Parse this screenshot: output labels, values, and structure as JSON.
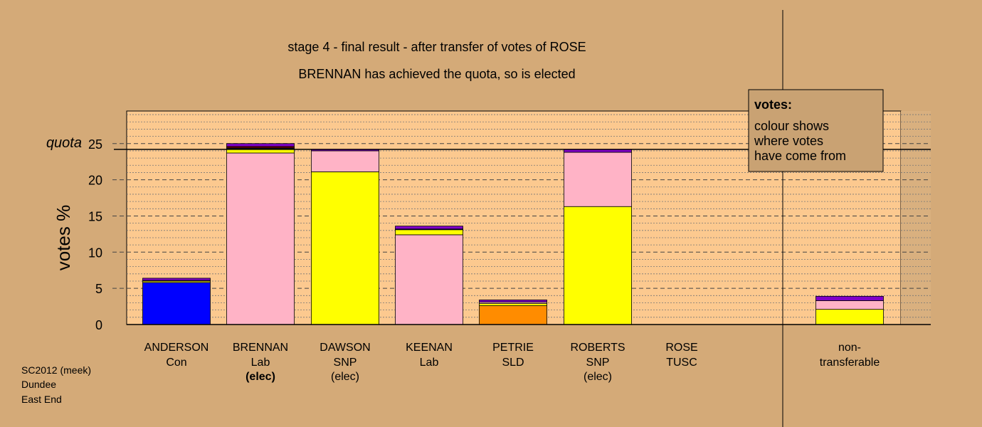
{
  "colors": {
    "background": "#d4aa78",
    "plot_area": "#fcc98f",
    "Con": "#0000ff",
    "Lab": "#ffb3c6",
    "SNP": "#ffff00",
    "SLD": "#ff8c00",
    "TUSC": "#8b0000",
    "other": "#8000c8"
  },
  "chart_data": {
    "type": "bar",
    "stacked": true,
    "title": "stage 4 - final result - after transfer of votes of ROSE",
    "subtitle": "BRENNAN has achieved the quota, so is elected",
    "ylabel": "votes %",
    "xlabel": "",
    "ylim": [
      0,
      29.5
    ],
    "yticks": [
      0,
      5,
      10,
      15,
      20,
      25
    ],
    "quota": 24.2,
    "quota_label": "quota",
    "grid": true,
    "legend": {
      "title": "votes:",
      "lines": [
        "colour shows",
        "where votes",
        "have come from"
      ],
      "position": "top-right"
    },
    "categories": [
      {
        "name": "ANDERSON",
        "party": "Con",
        "status": ""
      },
      {
        "name": "BRENNAN",
        "party": "Lab",
        "status": "(elec)",
        "status_bold": true
      },
      {
        "name": "DAWSON",
        "party": "SNP",
        "status": "(elec)"
      },
      {
        "name": "KEENAN",
        "party": "Lab",
        "status": ""
      },
      {
        "name": "PETRIE",
        "party": "SLD",
        "status": ""
      },
      {
        "name": "ROBERTS",
        "party": "SNP",
        "status": "(elec)"
      },
      {
        "name": "ROSE",
        "party": "TUSC",
        "status": ""
      },
      {
        "name": "non-",
        "party": "transferable",
        "status": ""
      }
    ],
    "bars": [
      [
        {
          "source": "Con",
          "value": 5.8
        },
        {
          "source": "SNP",
          "value": 0.2
        },
        {
          "source": "Lab",
          "value": 0.1
        },
        {
          "source": "other",
          "value": 0.3
        }
      ],
      [
        {
          "source": "Lab",
          "value": 23.7
        },
        {
          "source": "SNP",
          "value": 0.6
        },
        {
          "source": "Con",
          "value": 0.1
        },
        {
          "source": "TUSC",
          "value": 0.2
        },
        {
          "source": "other",
          "value": 0.4
        }
      ],
      [
        {
          "source": "SNP",
          "value": 21.1
        },
        {
          "source": "Lab",
          "value": 2.9
        },
        {
          "source": "other",
          "value": 0.2
        }
      ],
      [
        {
          "source": "Lab",
          "value": 12.4
        },
        {
          "source": "SNP",
          "value": 0.7
        },
        {
          "source": "Con",
          "value": 0.1
        },
        {
          "source": "other",
          "value": 0.4
        }
      ],
      [
        {
          "source": "SLD",
          "value": 2.6
        },
        {
          "source": "SNP",
          "value": 0.3
        },
        {
          "source": "Lab",
          "value": 0.2
        },
        {
          "source": "other",
          "value": 0.3
        }
      ],
      [
        {
          "source": "SNP",
          "value": 16.3
        },
        {
          "source": "Lab",
          "value": 7.5
        },
        {
          "source": "other",
          "value": 0.4
        }
      ],
      [],
      [
        {
          "source": "SNP",
          "value": 2.1
        },
        {
          "source": "Lab",
          "value": 1.2
        },
        {
          "source": "other",
          "value": 0.6
        }
      ]
    ]
  },
  "footer": {
    "line1": "SC2012 (meek)",
    "line2": "Dundee",
    "line3": "East End"
  }
}
